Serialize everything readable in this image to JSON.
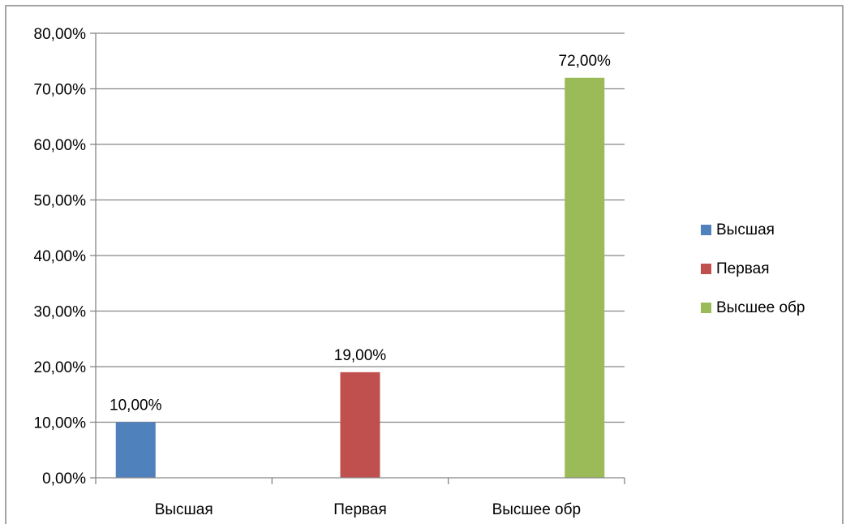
{
  "chart_data": {
    "type": "bar",
    "categories": [
      "Высшая",
      "Первая",
      "Высшее обр"
    ],
    "series": [
      {
        "name": "Высшая",
        "color": "#4F81BD",
        "values": [
          0.1,
          null,
          null
        ],
        "labels": [
          "10,00%",
          "",
          ""
        ]
      },
      {
        "name": "Первая",
        "color": "#C0504D",
        "values": [
          null,
          0.19,
          null
        ],
        "labels": [
          "",
          "19,00%",
          ""
        ]
      },
      {
        "name": "Высшее обр",
        "color": "#9BBB59",
        "values": [
          null,
          null,
          0.72
        ],
        "labels": [
          "",
          "",
          "72,00%"
        ]
      }
    ],
    "y_ticks": [
      0,
      0.1,
      0.2,
      0.3,
      0.4,
      0.5,
      0.6,
      0.7,
      0.8
    ],
    "y_tick_labels": [
      "0,00%",
      "10,00%",
      "20,00%",
      "30,00%",
      "40,00%",
      "50,00%",
      "60,00%",
      "70,00%",
      "80,00%"
    ],
    "ylim": [
      0,
      0.8
    ],
    "grid": true,
    "legend_position": "right",
    "grid_color": "#868686",
    "axis_color": "#868686",
    "border_color": "#868686"
  }
}
